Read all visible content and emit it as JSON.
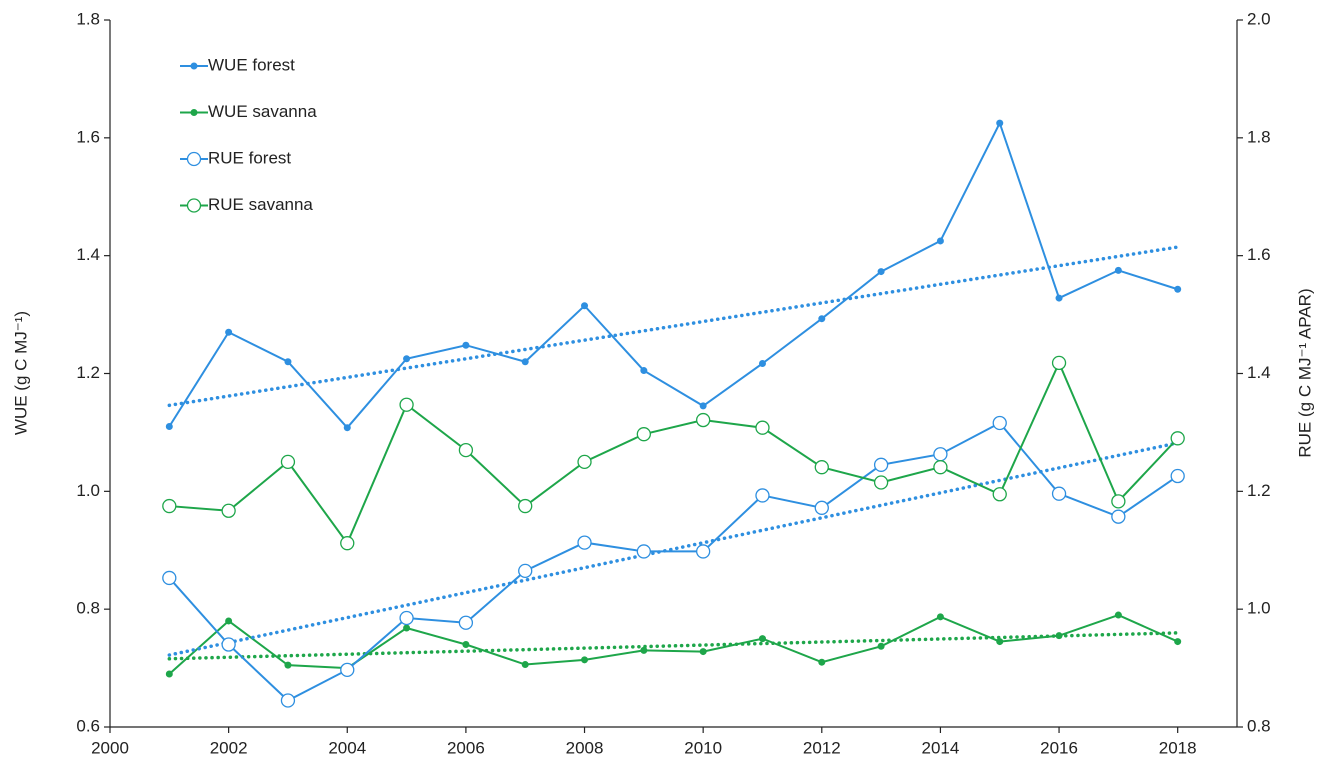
{
  "chart_data": {
    "type": "line",
    "x": [
      2001,
      2002,
      2003,
      2004,
      2005,
      2006,
      2007,
      2008,
      2009,
      2010,
      2011,
      2012,
      2013,
      2014,
      2015,
      2016,
      2017,
      2018
    ],
    "xlim": [
      2000,
      2019
    ],
    "xticks": [
      2000,
      2002,
      2004,
      2006,
      2008,
      2010,
      2012,
      2014,
      2016,
      2018
    ],
    "ylabel": "WUE (g C MJ⁻¹)",
    "ylim": [
      0.6,
      1.8
    ],
    "yticks": [
      {
        "value": 0.6,
        "label": "0.6"
      },
      {
        "value": 0.8,
        "label": "0.8"
      },
      {
        "value": 1.0,
        "label": "1.0"
      },
      {
        "value": 1.2,
        "label": "1.2"
      },
      {
        "value": 1.4,
        "label": "1.4"
      },
      {
        "value": 1.6,
        "label": "1.6"
      },
      {
        "value": 1.8,
        "label": "1.8"
      }
    ],
    "y2label": "RUE (g C MJ⁻¹ APAR)",
    "y2lim": [
      0.8,
      2.0
    ],
    "y2ticks": [
      {
        "value": 0.8,
        "label": "0.8"
      },
      {
        "value": 1.0,
        "label": "1.0"
      },
      {
        "value": 1.2,
        "label": "1.2"
      },
      {
        "value": 1.4,
        "label": "1.4"
      },
      {
        "value": 1.6,
        "label": "1.6"
      },
      {
        "value": 1.8,
        "label": "1.8"
      },
      {
        "value": 2.0,
        "label": "2.0"
      }
    ],
    "legend": "upper left",
    "series": [
      {
        "name": "WUE forest",
        "color": "#2e8fe0",
        "marker": "dot",
        "trend": true,
        "values": [
          1.11,
          1.27,
          1.22,
          1.108,
          1.225,
          1.248,
          1.22,
          1.315,
          1.205,
          1.145,
          1.217,
          1.293,
          1.373,
          1.425,
          1.625,
          1.328,
          1.375,
          1.343
        ]
      },
      {
        "name": "WUE savanna",
        "color": "#1ea64a",
        "marker": "dot",
        "trend": true,
        "values": [
          0.69,
          0.78,
          0.705,
          0.7,
          0.768,
          0.74,
          0.706,
          0.714,
          0.73,
          0.728,
          0.75,
          0.71,
          0.737,
          0.787,
          0.745,
          0.755,
          0.79,
          0.745
        ]
      },
      {
        "name": "RUE forest",
        "color": "#2e8fe0",
        "marker": "circle",
        "trend": true,
        "axis": "y2",
        "values": [
          1.053,
          0.94,
          0.845,
          0.897,
          0.985,
          0.977,
          1.065,
          1.113,
          1.098,
          1.098,
          1.193,
          1.172,
          1.245,
          1.263,
          1.316,
          1.196,
          1.157,
          1.226
        ]
      },
      {
        "name": "RUE savanna",
        "color": "#1ea64a",
        "marker": "circle",
        "trend": false,
        "axis": "y2",
        "values": [
          1.175,
          1.167,
          1.25,
          1.112,
          1.347,
          1.27,
          1.175,
          1.25,
          1.297,
          1.321,
          1.308,
          1.241,
          1.215,
          1.241,
          1.195,
          1.418,
          1.183,
          1.29
        ]
      }
    ]
  }
}
